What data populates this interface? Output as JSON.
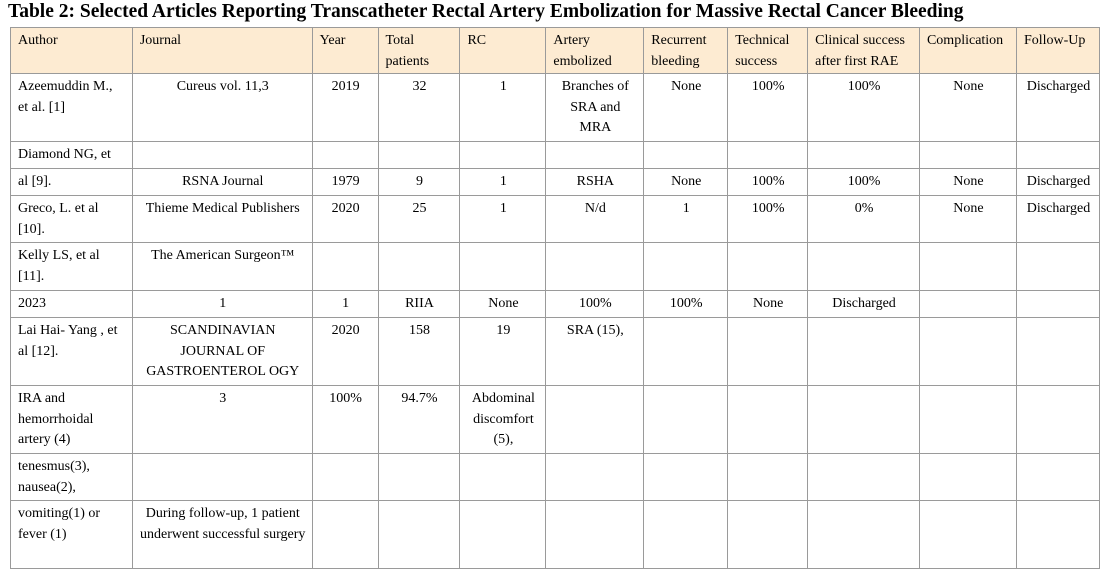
{
  "title": "Table 2: Selected Articles Reporting Transcatheter Rectal Artery Embolization for Massive Rectal Cancer Bleeding",
  "headers": [
    "Author",
    "Journal",
    "Year",
    "Total patients",
    "RC",
    "Artery embolized",
    "Recurrent bleeding",
    "Technical success",
    "Clinical success after first RAE",
    "Complication",
    "Follow-Up"
  ],
  "rows": [
    [
      "Azeemuddin M., et al. [1]",
      "Cureus vol. 11,3",
      "2019",
      "32",
      "1",
      "Branches of SRA and MRA",
      "None",
      "100%",
      "100%",
      "None",
      "Discharged"
    ],
    [
      "Diamond NG, et",
      "",
      "",
      "",
      "",
      "",
      "",
      "",
      "",
      "",
      ""
    ],
    [
      "al [9].",
      "RSNA Journal",
      "1979",
      "9",
      "1",
      "RSHA",
      "None",
      "100%",
      "100%",
      "None",
      "Discharged"
    ],
    [
      "Greco, L. et al [10].",
      "Thieme Medical Publishers",
      "2020",
      "25",
      "1",
      "N/d",
      "1",
      "100%",
      "0%",
      "None",
      "Discharged"
    ],
    [
      "Kelly LS, et al [11].",
      "The American Surgeon™",
      "",
      "",
      "",
      "",
      "",
      "",
      "",
      "",
      ""
    ],
    [
      "2023",
      "1",
      "1",
      "RIIA",
      "None",
      "100%",
      "100%",
      "None",
      "Discharged",
      "",
      ""
    ],
    [
      "Lai Hai- Yang , et al [12].",
      "SCANDINAVIAN JOURNAL OF GASTROENTEROL OGY",
      "2020",
      "158",
      "19",
      "SRA (15),",
      "",
      "",
      "",
      "",
      ""
    ],
    [
      "IRA and hemorrhoidal artery (4)",
      "3",
      "100%",
      "94.7%",
      "Abdominal discomfort (5),",
      "",
      "",
      "",
      "",
      "",
      ""
    ],
    [
      "tenesmus(3), nausea(2),",
      "",
      "",
      "",
      "",
      "",
      "",
      "",
      "",
      "",
      ""
    ],
    [
      "vomiting(1) or fever (1)",
      "During follow-up, 1 patient underwent successful surgery",
      "",
      "",
      "",
      "",
      "",
      "",
      "",
      "",
      ""
    ]
  ]
}
